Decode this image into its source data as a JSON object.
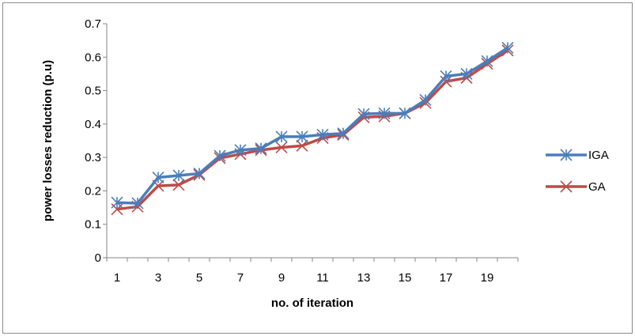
{
  "chart_data": {
    "type": "line",
    "xlabel": "no. of iteration",
    "ylabel": "power losses reduction (p.u)",
    "ylim": [
      0,
      0.7
    ],
    "yticks": [
      "0",
      "0.1",
      "0.2",
      "0.3",
      "0.4",
      "0.5",
      "0.6",
      "0.7"
    ],
    "x": [
      1,
      2,
      3,
      4,
      5,
      6,
      7,
      8,
      9,
      10,
      11,
      12,
      13,
      14,
      15,
      16,
      17,
      18,
      19,
      20
    ],
    "xtick_labels": [
      "1",
      "3",
      "5",
      "7",
      "9",
      "11",
      "13",
      "15",
      "17",
      "19"
    ],
    "xtick_positions": [
      1,
      3,
      5,
      7,
      9,
      11,
      13,
      15,
      17,
      19
    ],
    "legend_position": "right",
    "grid": false,
    "series": [
      {
        "name": "IGA",
        "color": "#4a7ebb",
        "marker": "asterisk",
        "values": [
          0.165,
          0.163,
          0.24,
          0.246,
          0.252,
          0.305,
          0.322,
          0.327,
          0.362,
          0.362,
          0.368,
          0.372,
          0.43,
          0.432,
          0.432,
          0.472,
          0.543,
          0.55,
          0.588,
          0.628
        ]
      },
      {
        "name": "GA",
        "color": "#be4b48",
        "marker": "x",
        "values": [
          0.145,
          0.153,
          0.215,
          0.218,
          0.248,
          0.298,
          0.31,
          0.322,
          0.33,
          0.335,
          0.358,
          0.368,
          0.42,
          0.423,
          0.432,
          0.463,
          0.527,
          0.538,
          0.58,
          0.62
        ]
      }
    ]
  }
}
